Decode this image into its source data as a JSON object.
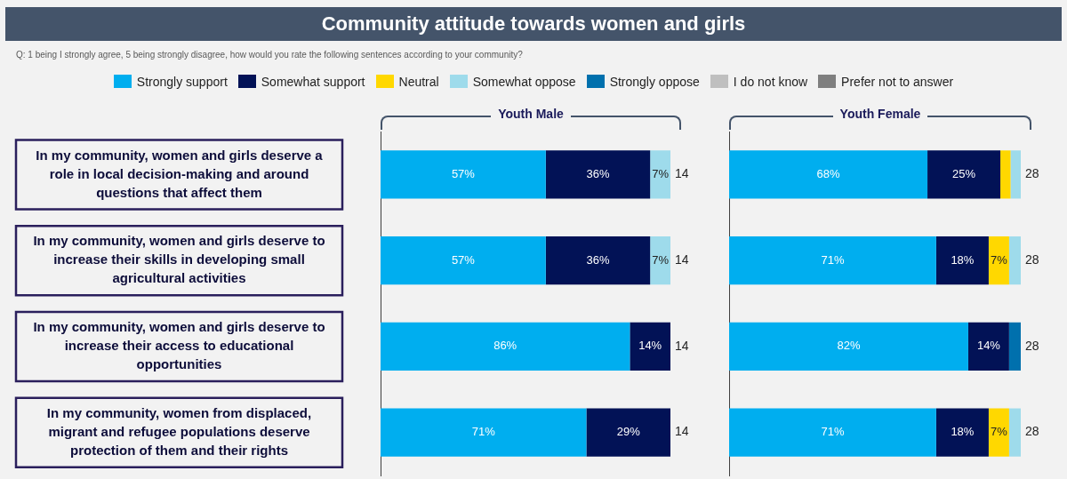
{
  "chart_data": [
    {
      "type": "bar",
      "orientation": "horizontal",
      "stacked": true,
      "title": "Community attitude towards women and girls",
      "subtitle": "Q: 1 being I strongly agree, 5 being strongly disagree, how would you rate the following sentences according to your community?",
      "legend": "top",
      "tick_labels": "y",
      "xlim": [
        0,
        100
      ],
      "legend_title": "Youth Male",
      "categories": [
        "In my community, women and girls deserve a role in local decision-making and around questions that affect them",
        "In my community, women and girls deserve to increase their skills in developing small agricultural activities",
        "In my community, women and girls deserve to increase their access to educational opportunities",
        "In my community, women from displaced, migrant and refugee populations deserve protection of them and their rights"
      ],
      "series": [
        {
          "name": "Strongly support",
          "color": "#00aeef",
          "values": [
            57,
            57,
            86,
            71
          ],
          "value_labels": [
            "57%",
            "57%",
            "86%",
            "71%"
          ]
        },
        {
          "name": "Somewhat support",
          "color": "#021256",
          "values": [
            36,
            36,
            14,
            29
          ],
          "value_labels": [
            "36%",
            "36%",
            "14%",
            "29%"
          ]
        },
        {
          "name": "Neutral",
          "color": "#ffd800",
          "values": [
            0,
            0,
            0,
            0
          ]
        },
        {
          "name": "Somewhat oppose",
          "color": "#9edbeb",
          "values": [
            7,
            7,
            0,
            0
          ],
          "value_labels": [
            "7%",
            "7%",
            null,
            null
          ]
        },
        {
          "name": "Strongly oppose",
          "color": "#0070ad",
          "values": [
            0,
            0,
            0,
            0
          ]
        },
        {
          "name": "I do not know",
          "color": "#bfbfbf",
          "values": [
            0,
            0,
            0,
            0
          ]
        },
        {
          "name": "Prefer not to answer",
          "color": "#7f7f7f",
          "values": [
            0,
            0,
            0,
            0
          ]
        }
      ],
      "annotations": [
        "14",
        "14",
        "14",
        "14"
      ]
    },
    {
      "type": "bar",
      "orientation": "horizontal",
      "stacked": true,
      "tick_labels": false,
      "xlim": [
        0,
        100
      ],
      "legend_title": "Youth Female",
      "categories": [
        null,
        null,
        null,
        null
      ],
      "series": [
        {
          "color": "#00aeef",
          "values": [
            68,
            71,
            82,
            71
          ],
          "value_labels": [
            "68%",
            "71%",
            "82%",
            "71%"
          ]
        },
        {
          "color": "#021256",
          "values": [
            25,
            18,
            14,
            18
          ],
          "value_labels": [
            "25%",
            "18%",
            "14%",
            "18%"
          ]
        },
        {
          "color": "#ffd800",
          "values": [
            3.5,
            7,
            0,
            7
          ],
          "value_labels": [
            null,
            "7%",
            null,
            "7%"
          ]
        },
        {
          "color": "#9edbeb",
          "values": [
            3.5,
            4,
            0,
            4
          ]
        },
        {
          "color": "#0070ad",
          "values": [
            0,
            0,
            4,
            0
          ]
        },
        {
          "color": "#bfbfbf",
          "values": [
            0,
            0,
            0,
            0
          ]
        },
        {
          "color": "#7f7f7f",
          "values": [
            0,
            0,
            0,
            0
          ]
        }
      ],
      "annotations": [
        "28",
        "28",
        "28",
        "28"
      ]
    }
  ]
}
